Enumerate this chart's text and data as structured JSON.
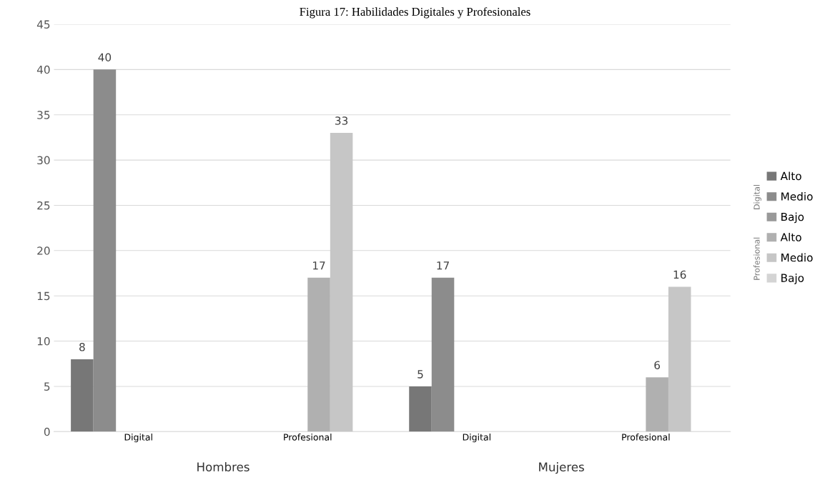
{
  "chart_data": {
    "type": "bar",
    "title": "Figura 17: Habilidades Digitales y Profesionales",
    "categories": [
      "Digital",
      "Profesional",
      "Digital",
      "Profesional"
    ],
    "series": [
      {
        "name": "Alto",
        "color": "#777777",
        "values": [
          8,
          null,
          5,
          null
        ]
      },
      {
        "name": "Medio",
        "color": "#8c8c8c",
        "values": [
          40,
          null,
          17,
          null
        ]
      },
      {
        "name": "Bajo",
        "color": "#999999",
        "values": [
          null,
          null,
          null,
          null
        ]
      },
      {
        "name": "Alto",
        "color": "#b0b0b0",
        "values": [
          null,
          17,
          null,
          6
        ]
      },
      {
        "name": "Medio",
        "color": "#c6c6c6",
        "values": [
          null,
          33,
          null,
          16
        ]
      },
      {
        "name": "Bajo",
        "color": "#d4d4d4",
        "values": [
          null,
          null,
          null,
          null
        ]
      }
    ],
    "annotations": [
      "Hombres",
      "Mujeres",
      "Digital",
      "Profesional"
    ],
    "ylim": [
      0,
      45
    ],
    "yticks": [
      0,
      5,
      10,
      15,
      20,
      25,
      30,
      35,
      40,
      45
    ],
    "grid": "y",
    "legend": "right",
    "data_labels": true
  }
}
